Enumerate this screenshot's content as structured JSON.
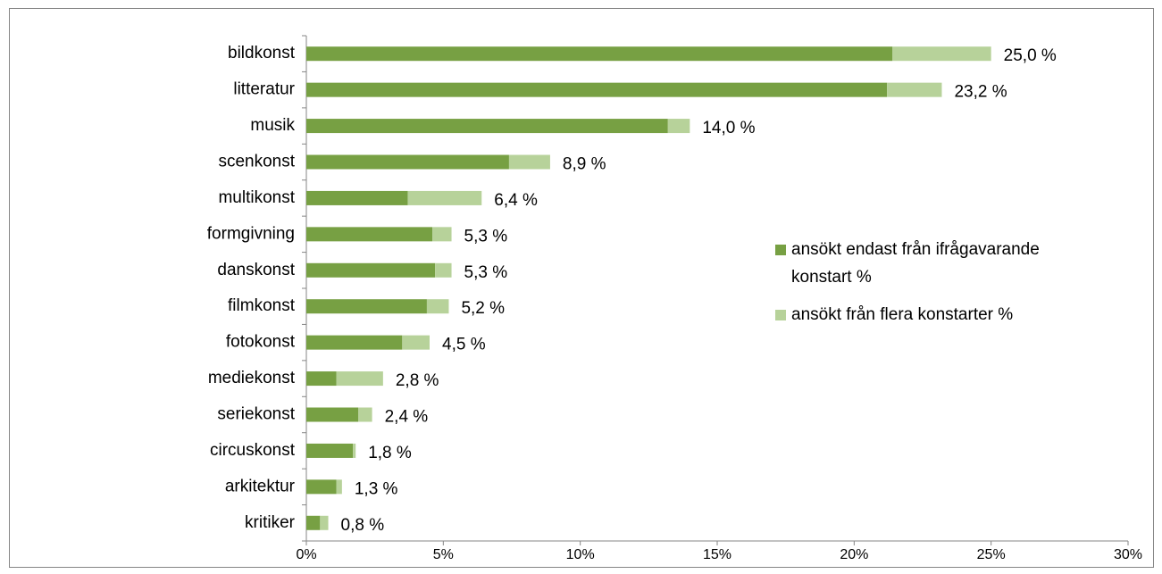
{
  "chart_data": {
    "type": "stacked_barh",
    "categories": [
      "bildkonst",
      "litteratur",
      "musik",
      "scenkonst",
      "multikonst",
      "formgivning",
      "danskonst",
      "filmkonst",
      "fotokonst",
      "mediekonst",
      "seriekonst",
      "circuskonst",
      "arkitektur",
      "kritiker"
    ],
    "series": [
      {
        "name": "ansökt endast från ifrågavarande konstart %",
        "color": "#77a043",
        "values": [
          21.4,
          21.2,
          13.2,
          7.4,
          3.7,
          4.6,
          4.7,
          4.4,
          3.5,
          1.1,
          1.9,
          1.7,
          1.1,
          0.5
        ]
      },
      {
        "name": "ansökt från flera konstarter %",
        "color": "#b7d29a",
        "values": [
          3.6,
          2.0,
          0.8,
          1.5,
          2.7,
          0.7,
          0.6,
          0.8,
          1.0,
          1.7,
          0.5,
          0.1,
          0.2,
          0.3
        ]
      }
    ],
    "totals": [
      25.0,
      23.2,
      14.0,
      8.9,
      6.4,
      5.3,
      5.3,
      5.2,
      4.5,
      2.8,
      2.4,
      1.8,
      1.3,
      0.8
    ],
    "total_labels": [
      "25,0 %",
      "23,2 %",
      "14,0 %",
      "8,9 %",
      "6,4 %",
      "5,3 %",
      "5,3 %",
      "5,2 %",
      "4,5 %",
      "2,8 %",
      "2,4 %",
      "1,8 %",
      "1,3 %",
      "0,8 %"
    ],
    "xlim": [
      0,
      30
    ],
    "xticks": [
      {
        "value": 0,
        "label": "0%"
      },
      {
        "value": 5,
        "label": "5%"
      },
      {
        "value": 10,
        "label": "10%"
      },
      {
        "value": 15,
        "label": "15%"
      },
      {
        "value": 20,
        "label": "20%"
      },
      {
        "value": 25,
        "label": "25%"
      },
      {
        "value": 30,
        "label": "30%"
      }
    ],
    "legend": "right"
  }
}
